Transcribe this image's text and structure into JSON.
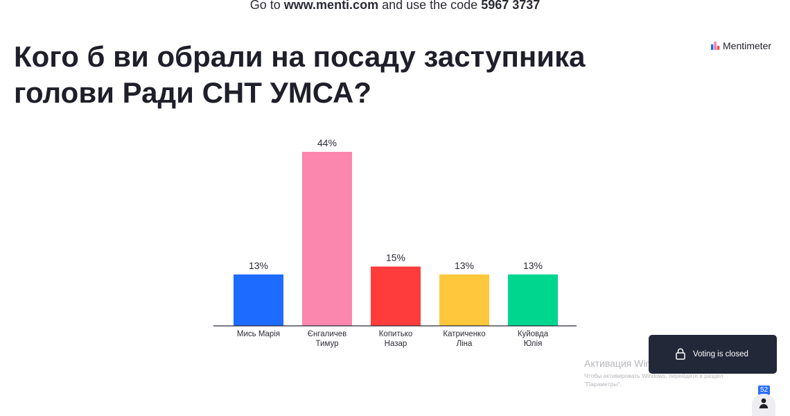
{
  "join": {
    "prefix": "Go to ",
    "url": "www.menti.com",
    "middle": " and use the code ",
    "code": "5967 3737"
  },
  "question": "Кого б ви обрали на посаду заступника голови Ради СНТ УМСА?",
  "brand": {
    "name": "Mentimeter",
    "icon": "mentimeter-logo-icon"
  },
  "chart_data": {
    "type": "bar",
    "categories": [
      [
        "Мись Марія"
      ],
      [
        "Єнгаличев",
        "Тимур"
      ],
      [
        "Копитько",
        "Назар"
      ],
      [
        "Катриченко",
        "Ліна"
      ],
      [
        "Куйовда",
        "Юлія"
      ]
    ],
    "values": [
      13,
      44,
      15,
      13,
      13
    ],
    "value_labels": [
      "13%",
      "44%",
      "15%",
      "13%",
      "13%"
    ],
    "colors": [
      "#1e6bff",
      "#fb86ae",
      "#ff3c3c",
      "#ffc73b",
      "#00d68e"
    ],
    "ylim": [
      0,
      44
    ],
    "grid": false,
    "legend": "none"
  },
  "windows_activation": {
    "title": "Активация Windows",
    "line1": "Чтобы активировать Windows, перейдите в раздел",
    "line2": "\"Параметры\"."
  },
  "voting": {
    "label": "Voting is closed",
    "icon": "lock-icon"
  },
  "participants": {
    "count": "52",
    "icon": "person-icon"
  }
}
